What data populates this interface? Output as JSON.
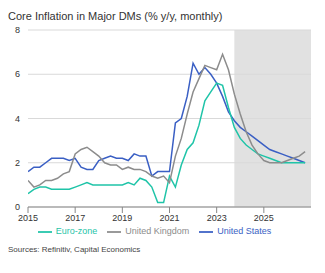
{
  "chart_data": {
    "type": "line",
    "title": "Core Inflation in Major DMs (% y/y, monthly)",
    "source": "Sources: Refinitiv, Capital Economics",
    "x": [
      2015,
      2015.25,
      2015.5,
      2015.75,
      2016,
      2016.25,
      2016.5,
      2016.75,
      2017,
      2017.25,
      2017.5,
      2017.75,
      2018,
      2018.25,
      2018.5,
      2018.75,
      2019,
      2019.25,
      2019.5,
      2019.75,
      2020,
      2020.25,
      2020.5,
      2020.75,
      2021,
      2021.25,
      2021.5,
      2021.75,
      2022,
      2022.25,
      2022.5,
      2022.75,
      2023,
      2023.25,
      2023.5,
      2023.75,
      2024,
      2024.25,
      2024.5,
      2024.75,
      2025,
      2025.25,
      2025.5,
      2025.75,
      2026,
      2026.25,
      2026.5,
      2026.75
    ],
    "series": [
      {
        "name": "United States",
        "color": "#3a5fc4",
        "values": [
          1.6,
          1.8,
          1.8,
          2.0,
          2.2,
          2.2,
          2.2,
          2.1,
          2.2,
          1.8,
          1.7,
          1.7,
          2.1,
          2.2,
          2.3,
          2.2,
          2.2,
          2.1,
          2.4,
          2.3,
          2.3,
          1.4,
          1.6,
          1.6,
          1.6,
          3.8,
          4.0,
          5.0,
          6.5,
          6.0,
          6.3,
          6.0,
          5.6,
          5.0,
          4.3,
          3.9,
          3.6,
          3.4,
          3.2,
          3.0,
          2.8,
          2.6,
          2.5,
          2.4,
          2.3,
          2.2,
          2.1,
          2.0
        ]
      },
      {
        "name": "Euro-zone",
        "color": "#1fc4a8",
        "values": [
          0.6,
          0.8,
          0.9,
          0.9,
          0.8,
          0.8,
          0.8,
          0.8,
          0.9,
          1.0,
          1.1,
          1.0,
          1.0,
          1.0,
          1.0,
          1.0,
          1.0,
          1.1,
          1.0,
          1.3,
          1.2,
          0.9,
          0.2,
          0.2,
          1.4,
          0.9,
          1.9,
          2.6,
          2.9,
          3.7,
          4.8,
          5.2,
          5.6,
          5.5,
          4.5,
          3.6,
          3.1,
          2.8,
          2.6,
          2.4,
          2.3,
          2.2,
          2.1,
          2.0,
          2.0,
          2.0,
          2.0,
          2.0
        ]
      },
      {
        "name": "United Kingdom",
        "color": "#8c8c8c",
        "values": [
          1.2,
          0.9,
          1.0,
          1.2,
          1.2,
          1.3,
          1.5,
          1.6,
          2.4,
          2.6,
          2.7,
          2.5,
          2.3,
          2.0,
          1.9,
          1.9,
          1.7,
          1.8,
          1.7,
          1.7,
          1.6,
          1.4,
          1.3,
          1.4,
          1.1,
          2.3,
          3.1,
          4.2,
          5.2,
          5.8,
          6.4,
          6.3,
          6.2,
          6.9,
          6.2,
          5.1,
          4.2,
          3.4,
          2.8,
          2.4,
          2.1,
          2.0,
          2.0,
          2.0,
          2.1,
          2.2,
          2.3,
          2.5
        ]
      }
    ],
    "xlim": [
      2015,
      2027
    ],
    "xticks": [
      2015,
      2017,
      2019,
      2021,
      2023,
      2025
    ],
    "ylim": [
      0,
      8
    ],
    "yticks": [
      0,
      2,
      4,
      6,
      8
    ],
    "shaded_x": [
      2023.75,
      2027
    ],
    "grid": true,
    "legend": "bottom"
  }
}
